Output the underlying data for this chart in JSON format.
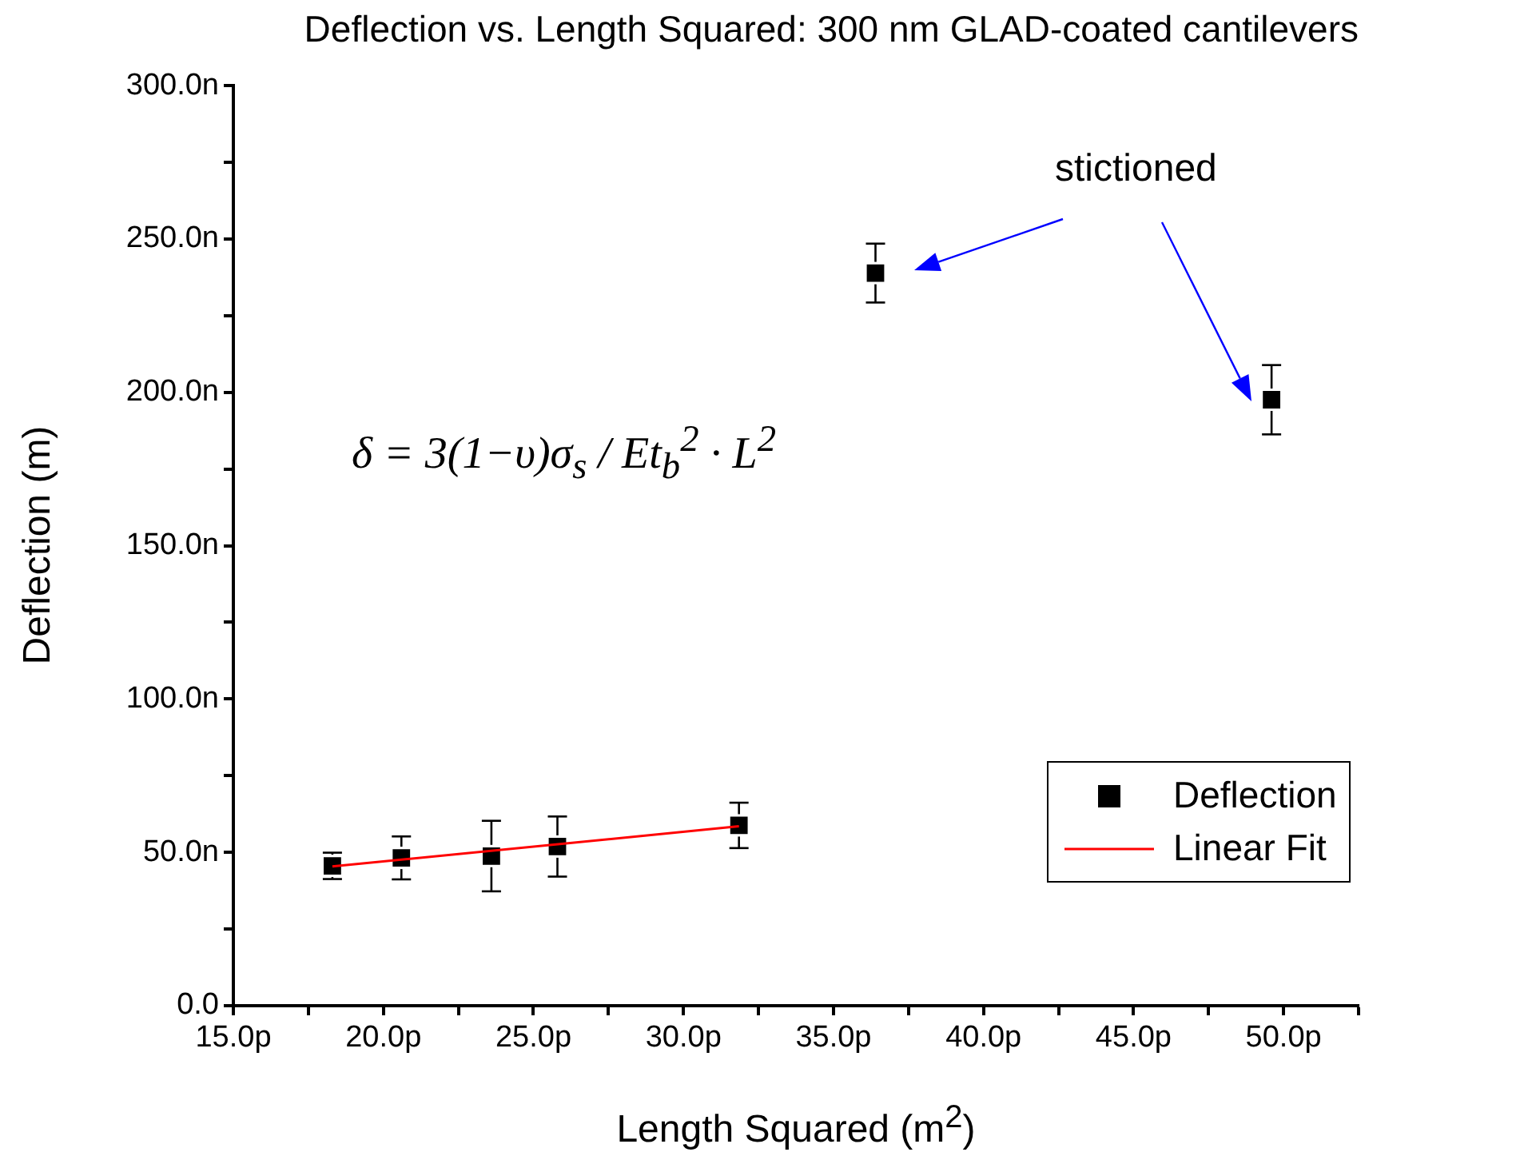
{
  "chart_data": {
    "type": "scatter",
    "title": "Deflection vs. Length Squared: 300 nm GLAD-coated cantilevers",
    "xlabel": "Length Squared (m$^{2}$)",
    "ylabel": "Deflection (m)",
    "series": [
      {
        "name": "Deflection",
        "color": "#000000",
        "marker": "square",
        "x": [
          18.3,
          20.6,
          23.6,
          25.8,
          31.85,
          36.4,
          49.6
        ],
        "values": [
          45.6,
          48.2,
          48.8,
          51.9,
          58.8,
          238.9,
          197.6
        ],
        "errors": [
          4.3,
          7,
          11.5,
          9.8,
          7.4,
          9.6,
          11.3
        ]
      },
      {
        "name": "Linear Fit",
        "type": "line",
        "color": "#ff0000",
        "line_style": "solid",
        "x": [
          18.3,
          31.85
        ],
        "values": [
          45.4,
          58.5
        ]
      }
    ],
    "xlim": [
      15,
      52.5
    ],
    "xticks": [
      {
        "value": 15,
        "label": "15.0p"
      },
      {
        "value": 17.5,
        "label": null
      },
      {
        "value": 20,
        "label": "20.0p"
      },
      {
        "value": 22.5,
        "label": null
      },
      {
        "value": 25,
        "label": "25.0p"
      },
      {
        "value": 27.5,
        "label": null
      },
      {
        "value": 30,
        "label": "30.0p"
      },
      {
        "value": 32.5,
        "label": null
      },
      {
        "value": 35,
        "label": "35.0p"
      },
      {
        "value": 37.5,
        "label": null
      },
      {
        "value": 40,
        "label": "40.0p"
      },
      {
        "value": 42.5,
        "label": null
      },
      {
        "value": 45,
        "label": "45.0p"
      },
      {
        "value": 47.5,
        "label": null
      },
      {
        "value": 50,
        "label": "50.0p"
      },
      {
        "value": 52.5,
        "label": null
      }
    ],
    "ylim": [
      0,
      300
    ],
    "yticks": [
      {
        "value": 0,
        "label": "0.0"
      },
      {
        "value": 25,
        "label": null
      },
      {
        "value": 50,
        "label": "50.0n"
      },
      {
        "value": 75,
        "label": null
      },
      {
        "value": 100,
        "label": "100.0n"
      },
      {
        "value": 125,
        "label": null
      },
      {
        "value": 150,
        "label": "150.0n"
      },
      {
        "value": 175,
        "label": null
      },
      {
        "value": 200,
        "label": "200.0n"
      },
      {
        "value": 225,
        "label": null
      },
      {
        "value": 250,
        "label": "250.0n"
      },
      {
        "value": 275,
        "label": null
      },
      {
        "value": 300,
        "label": "300.0n"
      }
    ],
    "annotations": [
      "stictioned",
      "δ = 3(1−υ)σ$_{s}$ / Et$_{b}$$^{2}$ · L$^{2}$"
    ],
    "grid": false,
    "legend": "right"
  }
}
